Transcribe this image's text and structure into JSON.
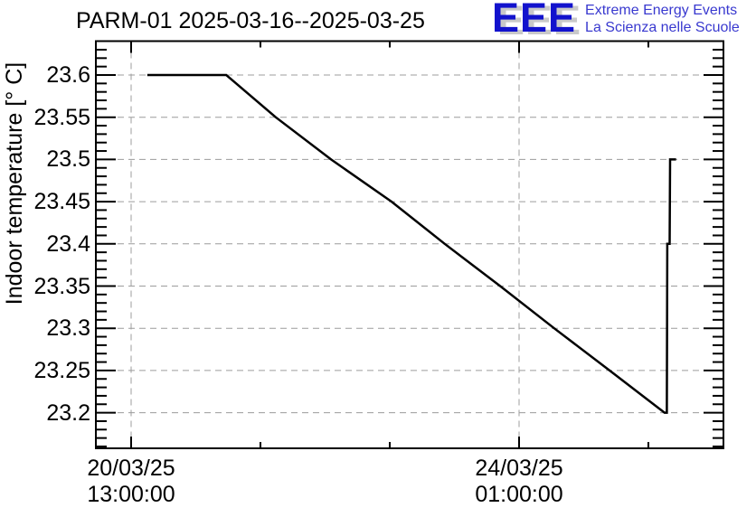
{
  "header": {
    "title": "PARM-01 2025-03-16--2025-03-25"
  },
  "logo": {
    "acronym": "EEE",
    "line1": "Extreme Energy Events",
    "line2": "La Scienza nelle Scuole",
    "blue": "#1212cd",
    "shadow_gray": "#c9c9c9"
  },
  "colors": {
    "line": "#000000",
    "frame": "#000000",
    "grid": "#9c9c9c",
    "background": "#ffffff"
  },
  "chart_data": {
    "type": "line",
    "title": "PARM-01 2025-03-16--2025-03-25",
    "ylabel": "Indoor temperature [° C]",
    "xlabel": "",
    "x_unit": "hours since 20/03/25 13:00:00",
    "xlim_hours": [
      -7.6,
      128.2
    ],
    "ylim": [
      23.158,
      23.64
    ],
    "grid": {
      "style": "dashed",
      "color": "#9c9c9c",
      "on_major_ticks": true
    },
    "legend": "none",
    "x_axis": {
      "major_ticks": [
        {
          "hours": 0,
          "date": "20/03/25",
          "time": "13:00:00"
        },
        {
          "hours": 84,
          "date": "24/03/25",
          "time": "01:00:00"
        }
      ],
      "minor_ticks_hours": [
        28,
        56,
        112
      ]
    },
    "y_axis": {
      "major_ticks": [
        {
          "value": 23.6,
          "label": "23.6"
        },
        {
          "value": 23.55,
          "label": "23.55"
        },
        {
          "value": 23.5,
          "label": "23.5"
        },
        {
          "value": 23.45,
          "label": "23.45"
        },
        {
          "value": 23.4,
          "label": "23.4"
        },
        {
          "value": 23.35,
          "label": "23.35"
        },
        {
          "value": 23.3,
          "label": "23.3"
        },
        {
          "value": 23.25,
          "label": "23.25"
        },
        {
          "value": 23.2,
          "label": "23.2"
        }
      ],
      "minor_step": 0.01
    },
    "series": [
      {
        "name": "indoor-temperature",
        "color": "#000000",
        "points_hours_degC": [
          [
            3.5,
            23.6
          ],
          [
            20.6,
            23.6
          ],
          [
            31.3,
            23.55
          ],
          [
            43.3,
            23.5
          ],
          [
            56.4,
            23.45
          ],
          [
            67.9,
            23.4
          ],
          [
            79.9,
            23.35
          ],
          [
            91.6,
            23.3
          ],
          [
            103.6,
            23.25
          ],
          [
            115.5,
            23.2
          ],
          [
            116.0,
            23.2
          ],
          [
            116.1,
            23.4
          ],
          [
            116.6,
            23.4
          ],
          [
            116.7,
            23.5
          ],
          [
            118.0,
            23.5
          ]
        ]
      }
    ]
  }
}
